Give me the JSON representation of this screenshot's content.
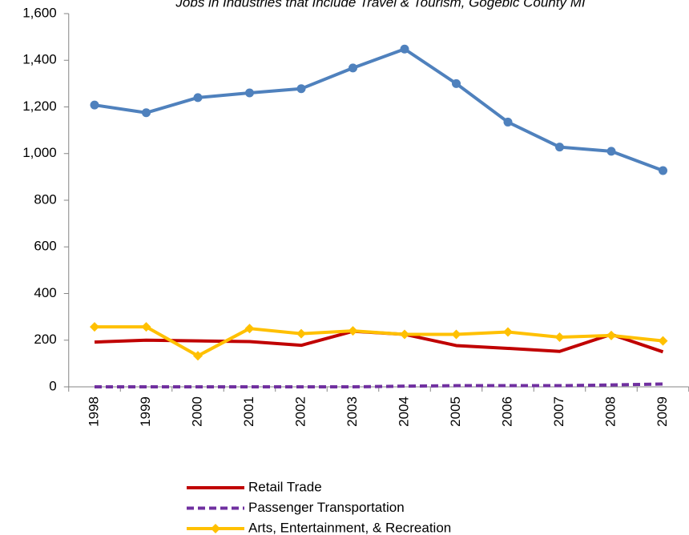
{
  "chart_data": {
    "type": "line",
    "title": "Jobs in Industries that Include Travel & Tourism, Gogebic County MI",
    "categories": [
      "1998",
      "1999",
      "2000",
      "2001",
      "2002",
      "2003",
      "2004",
      "2005",
      "2006",
      "2007",
      "2008",
      "2009"
    ],
    "series": [
      {
        "color": "#4f81bd",
        "marker": "circle",
        "dashed": false,
        "values": [
          1208,
          1175,
          1240,
          1260,
          1278,
          1367,
          1448,
          1300,
          1135,
          1028,
          1010,
          927
        ]
      },
      {
        "name": "Retail Trade",
        "color": "#c00000",
        "marker": "none",
        "dashed": false,
        "values": [
          192,
          200,
          197,
          194,
          178,
          238,
          225,
          177,
          165,
          152,
          225,
          150
        ]
      },
      {
        "name": "Passenger Transportation",
        "color": "#7030a0",
        "marker": "none",
        "dashed": true,
        "values": [
          0,
          0,
          0,
          0,
          0,
          0,
          3,
          5,
          5,
          5,
          8,
          12
        ]
      },
      {
        "name": "Arts, Entertainment, & Recreation",
        "color": "#ffc000",
        "marker": "diamond",
        "dashed": false,
        "values": [
          257,
          257,
          133,
          250,
          228,
          240,
          225,
          225,
          235,
          213,
          220,
          197
        ]
      }
    ],
    "ylim": [
      0,
      1600
    ],
    "yticks": [
      0,
      200,
      400,
      600,
      800,
      {
        "value": 1000,
        "label": "1,000"
      },
      {
        "value": 1200,
        "label": "1,200"
      },
      {
        "value": 1400,
        "label": "1,400"
      },
      {
        "value": 1600,
        "label": "1,600"
      }
    ],
    "grid": false
  }
}
